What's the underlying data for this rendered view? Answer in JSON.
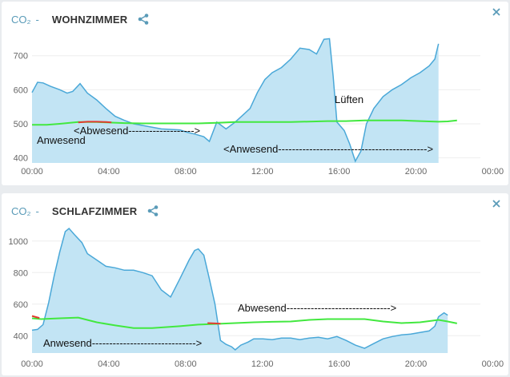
{
  "colors": {
    "area_fill": "#c2e4f4",
    "area_line": "#4aa8d8",
    "green": "#42e83f",
    "red": "#e23b2e",
    "header_text": "#333333",
    "accent": "#5a9bb8"
  },
  "icons": {
    "share": "share-icon",
    "close": "close-icon"
  },
  "cards": [
    {
      "co2_label": "CO₂",
      "dash": "-",
      "room": "WOHNZIMMER",
      "y_ticks": [
        "700",
        "600",
        "500",
        "400"
      ],
      "x_ticks": [
        "00:00",
        "04:00",
        "08:00",
        "12:00",
        "16:00",
        "20:00",
        "00:00"
      ],
      "annotations": {
        "anwesend_1": "Anwesend",
        "abwesend_1": "<Abwesend------------------->",
        "anwesend_2": "<Anwesend------------------------------------------->",
        "lueften": "Lüften"
      },
      "chart_data": {
        "type": "area",
        "xlabel": "",
        "ylabel": "",
        "x_range_hours": [
          0,
          24
        ],
        "ylim": [
          385,
          765
        ],
        "grid": true,
        "series": [
          {
            "values": [
              [
                0,
                592
              ],
              [
                0.3,
                622
              ],
              [
                0.6,
                620
              ],
              [
                1.0,
                610
              ],
              [
                1.5,
                600
              ],
              [
                1.9,
                590
              ],
              [
                2.2,
                595
              ],
              [
                2.6,
                618
              ],
              [
                3.0,
                590
              ],
              [
                3.5,
                570
              ],
              [
                4.0,
                545
              ],
              [
                4.5,
                522
              ],
              [
                5.0,
                510
              ],
              [
                5.5,
                500
              ],
              [
                6.0,
                495
              ],
              [
                6.5,
                490
              ],
              [
                7.0,
                485
              ],
              [
                8.0,
                482
              ],
              [
                8.4,
                475
              ],
              [
                8.8,
                470
              ],
              [
                9.3,
                462
              ],
              [
                9.6,
                448
              ],
              [
                10.0,
                505
              ],
              [
                10.5,
                485
              ],
              [
                11.0,
                505
              ],
              [
                11.4,
                525
              ],
              [
                11.8,
                545
              ],
              [
                12.2,
                592
              ],
              [
                12.6,
                630
              ],
              [
                13.0,
                650
              ],
              [
                13.5,
                665
              ],
              [
                14.0,
                690
              ],
              [
                14.5,
                722
              ],
              [
                15.0,
                718
              ],
              [
                15.4,
                705
              ],
              [
                15.8,
                748
              ],
              [
                16.1,
                750
              ],
              [
                16.3,
                640
              ],
              [
                16.5,
                505
              ],
              [
                16.9,
                480
              ],
              [
                17.2,
                440
              ],
              [
                17.5,
                390
              ],
              [
                17.8,
                420
              ],
              [
                18.1,
                500
              ],
              [
                18.5,
                545
              ],
              [
                19.0,
                580
              ],
              [
                19.5,
                600
              ],
              [
                20.0,
                615
              ],
              [
                20.5,
                635
              ],
              [
                21.0,
                650
              ],
              [
                21.5,
                670
              ],
              [
                21.8,
                690
              ],
              [
                22.0,
                735
              ]
            ]
          },
          {
            "values": [
              [
                0,
                497
              ],
              [
                0.8,
                497
              ],
              [
                1.5,
                500
              ],
              [
                2.5,
                505
              ],
              [
                3.5,
                505
              ],
              [
                5.0,
                502
              ],
              [
                6.0,
                501
              ],
              [
                8.0,
                501
              ],
              [
                9.0,
                501
              ],
              [
                10.0,
                503
              ],
              [
                11.0,
                505
              ],
              [
                12.0,
                505
              ],
              [
                14.0,
                505
              ],
              [
                16.0,
                508
              ],
              [
                17.0,
                508
              ],
              [
                18.0,
                510
              ],
              [
                20.0,
                510
              ],
              [
                21.0,
                508
              ],
              [
                22.0,
                506
              ],
              [
                22.5,
                507
              ],
              [
                23.0,
                510
              ]
            ]
          },
          {
            "values": [
              [
                2.5,
                504
              ],
              [
                3.0,
                506
              ],
              [
                3.5,
                506
              ],
              [
                4.0,
                505
              ],
              [
                4.3,
                504
              ]
            ]
          }
        ]
      }
    },
    {
      "co2_label": "CO₂",
      "dash": "-",
      "room": "SCHLAFZIMMER",
      "y_ticks": [
        "1000",
        "800",
        "600",
        "400"
      ],
      "x_ticks": [
        "00:00",
        "04:00",
        "08:00",
        "12:00",
        "16:00",
        "20:00",
        "00:00"
      ],
      "annotations": {
        "abwesend": "Abwesend------------------------------>",
        "anwesend": "Anwesend------------------------------>"
      },
      "chart_data": {
        "type": "area",
        "xlabel": "",
        "ylabel": "",
        "x_range_hours": [
          0,
          24
        ],
        "ylim": [
          290,
          1100
        ],
        "grid": true,
        "series": [
          {
            "values": [
              [
                0,
                435
              ],
              [
                0.3,
                440
              ],
              [
                0.6,
                470
              ],
              [
                0.9,
                610
              ],
              [
                1.2,
                780
              ],
              [
                1.5,
                930
              ],
              [
                1.8,
                1060
              ],
              [
                2.0,
                1080
              ],
              [
                2.3,
                1040
              ],
              [
                2.7,
                990
              ],
              [
                3.0,
                920
              ],
              [
                3.5,
                880
              ],
              [
                4.0,
                840
              ],
              [
                4.5,
                830
              ],
              [
                5.0,
                815
              ],
              [
                5.5,
                815
              ],
              [
                6.0,
                800
              ],
              [
                6.5,
                780
              ],
              [
                7.0,
                690
              ],
              [
                7.5,
                645
              ],
              [
                8.0,
                760
              ],
              [
                8.5,
                880
              ],
              [
                8.8,
                940
              ],
              [
                9.0,
                950
              ],
              [
                9.3,
                910
              ],
              [
                9.6,
                760
              ],
              [
                9.9,
                600
              ],
              [
                10.2,
                370
              ],
              [
                10.5,
                345
              ],
              [
                10.8,
                330
              ],
              [
                11.0,
                310
              ],
              [
                11.3,
                340
              ],
              [
                11.7,
                360
              ],
              [
                12.0,
                380
              ],
              [
                12.5,
                380
              ],
              [
                13.0,
                375
              ],
              [
                13.5,
                385
              ],
              [
                14.0,
                385
              ],
              [
                14.5,
                375
              ],
              [
                15.0,
                385
              ],
              [
                15.5,
                390
              ],
              [
                16.0,
                380
              ],
              [
                16.5,
                395
              ],
              [
                17.0,
                370
              ],
              [
                17.5,
                340
              ],
              [
                18.0,
                320
              ],
              [
                18.5,
                350
              ],
              [
                19.0,
                380
              ],
              [
                19.5,
                395
              ],
              [
                20.0,
                405
              ],
              [
                20.5,
                410
              ],
              [
                21.0,
                420
              ],
              [
                21.5,
                430
              ],
              [
                21.8,
                460
              ],
              [
                22.0,
                520
              ],
              [
                22.3,
                545
              ],
              [
                22.5,
                530
              ]
            ]
          },
          {
            "values": [
              [
                0,
                510
              ],
              [
                0.5,
                505
              ],
              [
                1.5,
                510
              ],
              [
                2.5,
                515
              ],
              [
                3.5,
                485
              ],
              [
                4.5,
                465
              ],
              [
                5.5,
                448
              ],
              [
                6.5,
                448
              ],
              [
                8.0,
                460
              ],
              [
                9.0,
                470
              ],
              [
                10.0,
                475
              ],
              [
                11.0,
                480
              ],
              [
                12.0,
                485
              ],
              [
                13.0,
                488
              ],
              [
                14.0,
                490
              ],
              [
                15.0,
                500
              ],
              [
                16.0,
                505
              ],
              [
                17.0,
                505
              ],
              [
                18.0,
                505
              ],
              [
                19.0,
                490
              ],
              [
                20.0,
                480
              ],
              [
                21.0,
                485
              ],
              [
                22.0,
                500
              ],
              [
                22.5,
                490
              ],
              [
                23.0,
                478
              ]
            ]
          },
          {
            "values": [
              [
                0,
                525
              ],
              [
                0.4,
                512
              ]
            ]
          },
          {
            "values": [
              [
                9.5,
                480
              ],
              [
                9.9,
                478
              ],
              [
                10.2,
                476
              ]
            ]
          }
        ]
      }
    }
  ]
}
